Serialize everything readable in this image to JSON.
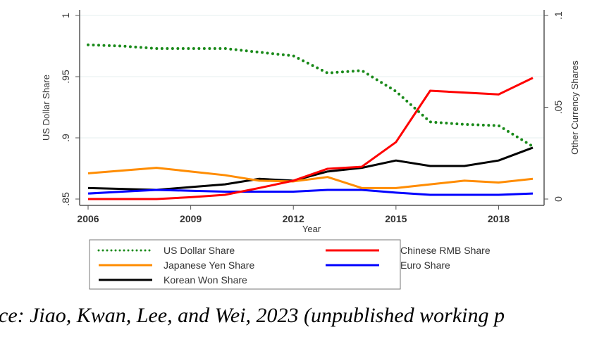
{
  "chart_data": {
    "type": "line",
    "x": [
      2006,
      2007,
      2008,
      2009,
      2010,
      2011,
      2012,
      2013,
      2014,
      2015,
      2016,
      2017,
      2018,
      2019
    ],
    "xlabel": "Year",
    "xticks": [
      "2006",
      "2009",
      "2012",
      "2015",
      "2018"
    ],
    "ylabel_left": "US Dollar Share",
    "ylabel_right": "Other Currency Shares",
    "ylim_left": [
      0.85,
      1.0
    ],
    "ylim_right": [
      0,
      0.1
    ],
    "yticks_left": [
      ".85",
      ".9",
      ".95",
      "1"
    ],
    "yticks_right": [
      "0",
      ".05",
      ".1"
    ],
    "grid": true,
    "legend_position": "bottom",
    "series": [
      {
        "name": "US Dollar Share",
        "axis": "left",
        "color": "#1a8a1a",
        "style": "dotted",
        "values": [
          0.976,
          0.975,
          0.973,
          0.973,
          0.973,
          0.97,
          0.967,
          0.953,
          0.955,
          0.938,
          0.913,
          0.911,
          0.91,
          0.893
        ]
      },
      {
        "name": "Chinese RMB Share",
        "axis": "right",
        "color": "#ff0000",
        "style": "solid",
        "values": [
          0.0,
          0.0,
          0.0,
          0.001,
          0.0023,
          0.006,
          0.01,
          0.0165,
          0.0176,
          0.031,
          0.059,
          0.058,
          0.057,
          0.066
        ]
      },
      {
        "name": "Japanese Yen Share",
        "axis": "right",
        "color": "#ff8c00",
        "style": "solid",
        "values": [
          0.014,
          0.0155,
          0.017,
          0.015,
          0.013,
          0.01,
          0.0096,
          0.012,
          0.006,
          0.006,
          0.008,
          0.01,
          0.009,
          0.011
        ]
      },
      {
        "name": "Euro Share",
        "axis": "right",
        "color": "#0000ff",
        "style": "solid",
        "values": [
          0.003,
          0.004,
          0.005,
          0.0045,
          0.004,
          0.004,
          0.004,
          0.005,
          0.005,
          0.0035,
          0.0023,
          0.0023,
          0.0023,
          0.003
        ]
      },
      {
        "name": "Korean Won Share",
        "axis": "right",
        "color": "#000000",
        "style": "solid",
        "values": [
          0.006,
          0.0055,
          0.005,
          0.0065,
          0.008,
          0.011,
          0.01,
          0.015,
          0.017,
          0.021,
          0.018,
          0.018,
          0.021,
          0.028
        ]
      }
    ],
    "legend": [
      "US Dollar Share",
      "Chinese RMB Share",
      "Japanese Yen Share",
      "Euro Share",
      "Korean Won Share"
    ]
  },
  "caption": "ce: Jiao, Kwan, Lee, and Wei, 2023 (unpublished working p"
}
